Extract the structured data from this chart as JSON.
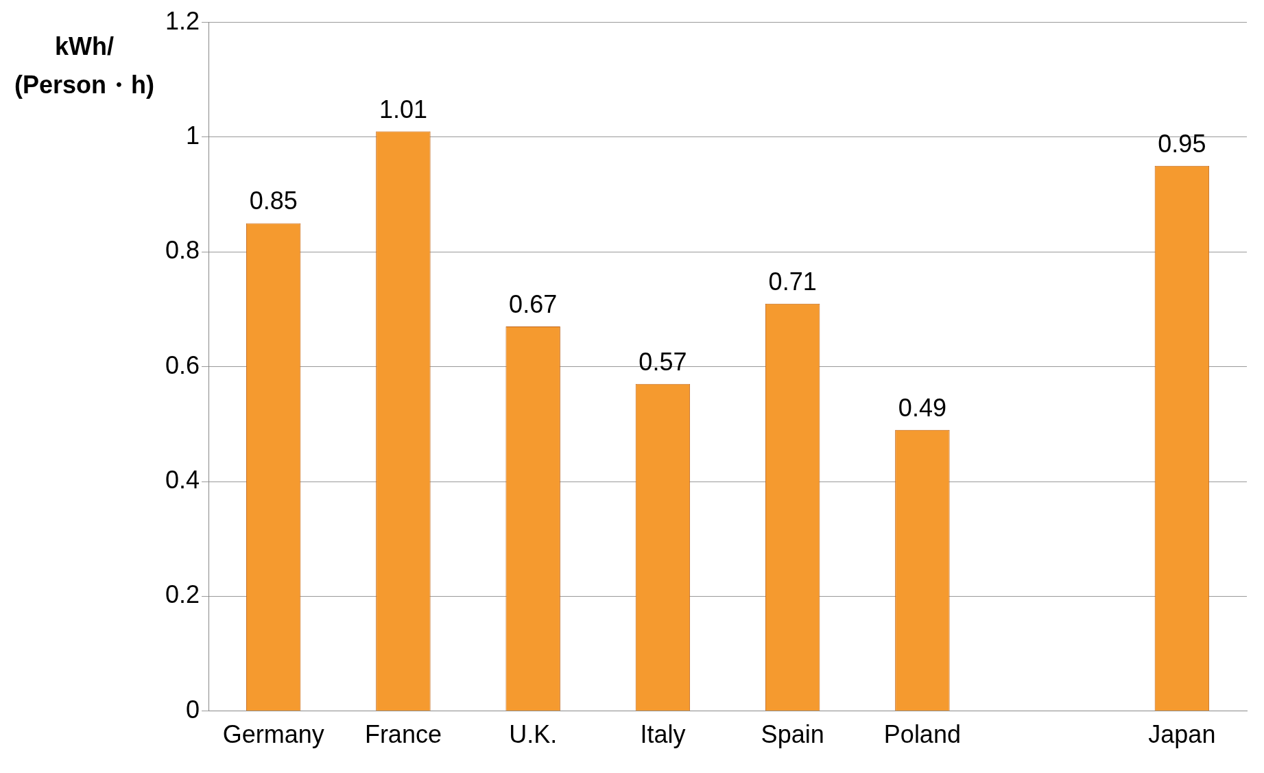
{
  "chart_data": {
    "type": "bar",
    "ylabel": "kWh/(Person・h)",
    "categories": [
      "Germany",
      "France",
      "U.K.",
      "Italy",
      "Spain",
      "Poland",
      null,
      "Japan"
    ],
    "values": [
      0.85,
      1.01,
      0.67,
      0.57,
      0.71,
      0.49,
      null,
      0.95
    ],
    "color": "#f59a2f",
    "ylim": [
      0,
      1.2
    ],
    "yticks": [
      0,
      0.2,
      0.4,
      0.6,
      0.8,
      1,
      1.2
    ],
    "grid": "y",
    "data_labels": true,
    "legend": false
  }
}
